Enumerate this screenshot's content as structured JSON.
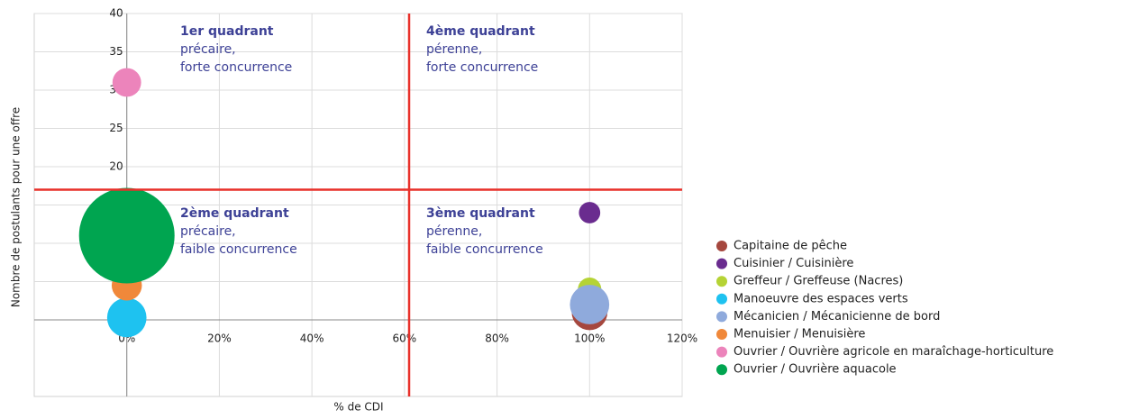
{
  "chart_data": {
    "type": "bubble",
    "x_label": "% de CDI",
    "y_label": "Nombre de postulants pour une offre",
    "xlim": [
      -20,
      120
    ],
    "xticks": [
      {
        "value": 0,
        "label": "0%"
      },
      {
        "value": 20,
        "label": "20%"
      },
      {
        "value": 40,
        "label": "40%"
      },
      {
        "value": 60,
        "label": "60%"
      },
      {
        "value": 80,
        "label": "80%"
      },
      {
        "value": 100,
        "label": "100%"
      },
      {
        "value": 120,
        "label": "120%"
      }
    ],
    "ylim": [
      -10,
      40
    ],
    "yticks": [
      0,
      5,
      10,
      15,
      20,
      25,
      30,
      35,
      40
    ],
    "grid": true,
    "legend": "right",
    "quadrant_lines": {
      "x": 61,
      "y": 17,
      "color": "#e8302a"
    },
    "annotations": [
      {
        "title": "1er quadrant",
        "lines": [
          "précaire,",
          "forte concurrence"
        ]
      },
      {
        "title": "4ème quadrant",
        "lines": [
          "pérenne,",
          "forte concurrence"
        ]
      },
      {
        "title": "2ème quadrant",
        "lines": [
          "précaire,",
          "faible concurrence"
        ]
      },
      {
        "title": "3ème quadrant",
        "lines": [
          "pérenne,",
          "faible concurrence"
        ]
      }
    ],
    "series": [
      {
        "name": "Capitaine de pêche",
        "color": "#a5473e",
        "x": [
          100
        ],
        "values": [
          1
        ],
        "sizes": [
          14
        ]
      },
      {
        "name": "Cuisinier / Cuisinière",
        "color": "#6a2c8f",
        "x": [
          100
        ],
        "values": [
          14
        ],
        "sizes": [
          5
        ]
      },
      {
        "name": "Greffeur / Greffeuse (Nacres)",
        "color": "#b5d335",
        "x": [
          100
        ],
        "values": [
          4
        ],
        "sizes": [
          6
        ]
      },
      {
        "name": "Manoeuvre des espaces verts",
        "color": "#1ec2f0",
        "x": [
          0
        ],
        "values": [
          0.3
        ],
        "sizes": [
          17
        ]
      },
      {
        "name": "Mécanicien / Mécanicienne de bord",
        "color": "#8faadc",
        "x": [
          100
        ],
        "values": [
          2
        ],
        "sizes": [
          17
        ]
      },
      {
        "name": "Menuisier / Menuisière",
        "color": "#f0883a",
        "x": [
          0
        ],
        "values": [
          4.5
        ],
        "sizes": [
          10
        ]
      },
      {
        "name": "Ouvrier / Ouvrière agricole en maraîchage-horticulture",
        "color": "#ec84bb",
        "x": [
          0
        ],
        "values": [
          31
        ],
        "sizes": [
          9
        ]
      },
      {
        "name": "Ouvrier / Ouvrière aquacole",
        "color": "#00a550",
        "x": [
          0
        ],
        "values": [
          11
        ],
        "sizes": [
          100
        ]
      }
    ]
  }
}
